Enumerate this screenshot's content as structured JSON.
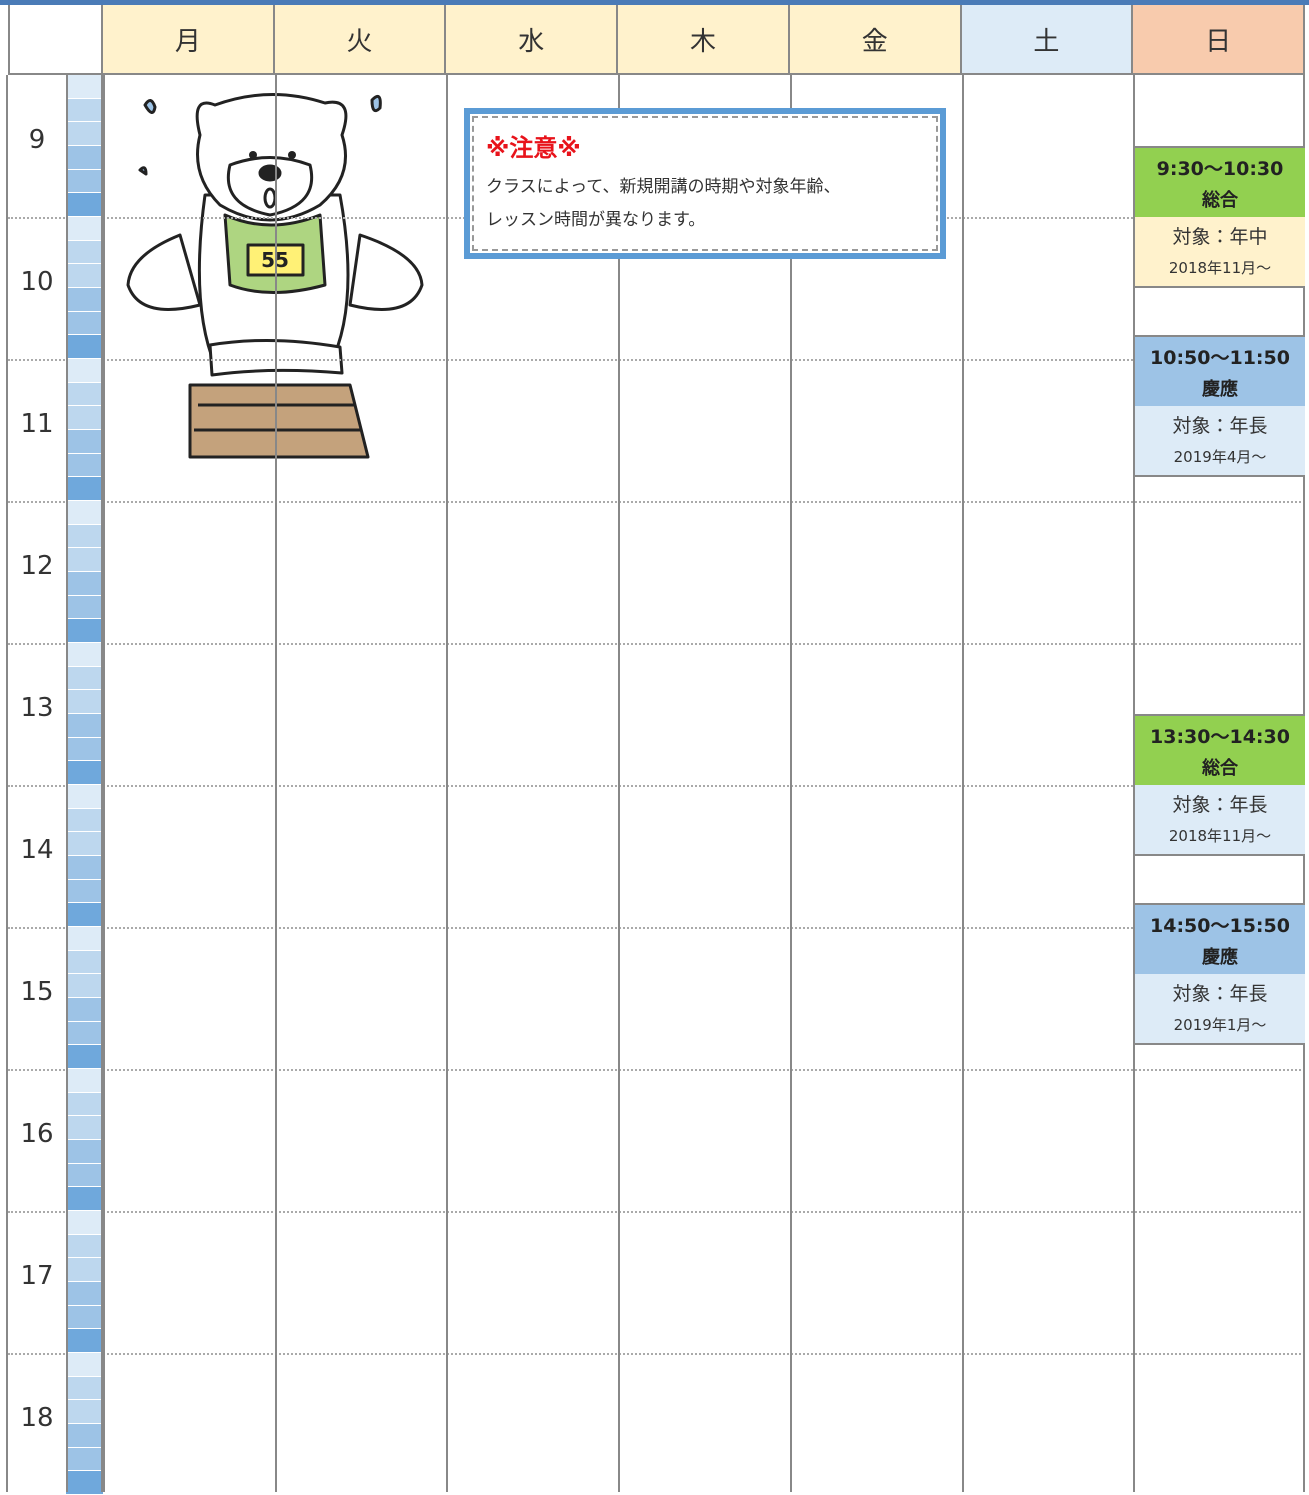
{
  "header": {
    "days": [
      "月",
      "火",
      "水",
      "木",
      "金",
      "土",
      "日"
    ]
  },
  "hours": [
    "9",
    "10",
    "11",
    "12",
    "13",
    "14",
    "15",
    "16",
    "17",
    "18"
  ],
  "notice": {
    "title": "※注意※",
    "lines": [
      "クラスによって、新規開講の時期や対象年齢、",
      "レッスン時間が異なります。"
    ]
  },
  "events": [
    {
      "time": "9:30～10:30",
      "name": "総合",
      "target": "対象：年中",
      "start": "2018年11月～"
    },
    {
      "time": "10:50～11:50",
      "name": "慶應",
      "target": "対象：年長",
      "start": "2019年4月～"
    },
    {
      "time": "13:30～14:30",
      "name": "総合",
      "target": "対象：年長",
      "start": "2018年11月～"
    },
    {
      "time": "14:50～15:50",
      "name": "慶應",
      "target": "対象：年長",
      "start": "2019年1月～"
    }
  ]
}
